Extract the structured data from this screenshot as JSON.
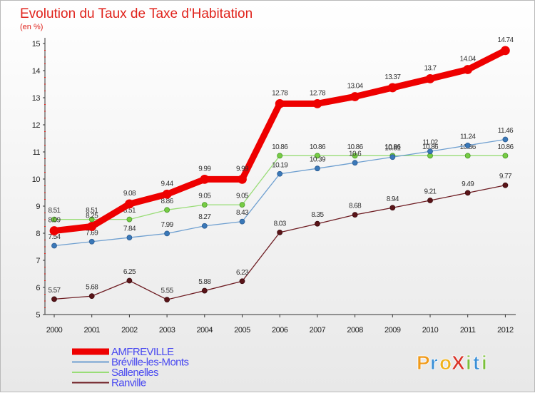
{
  "chart_data": {
    "type": "line",
    "title": "Evolution du Taux de Taxe d'Habitation",
    "subtitle": "(en %)",
    "xlabel": "",
    "ylabel": "",
    "x": [
      "2000",
      "2001",
      "2002",
      "2003",
      "2004",
      "2005",
      "2006",
      "2007",
      "2008",
      "2009",
      "2010",
      "2011",
      "2012"
    ],
    "ylim": [
      5,
      15
    ],
    "yticks": [
      5,
      6,
      7,
      8,
      9,
      10,
      11,
      12,
      13,
      14,
      15
    ],
    "grid": false,
    "legend_position": "bottom-left",
    "series": [
      {
        "name": "Ranville",
        "color": "#6e1d23",
        "values": [
          5.57,
          5.68,
          6.25,
          5.55,
          5.88,
          6.23,
          8.03,
          8.35,
          8.68,
          8.94,
          9.21,
          9.49,
          9.77
        ],
        "labels": [
          "5.57",
          "5.68",
          "6.25",
          "5.55",
          "5.88",
          "6.23",
          "8.03",
          "8.35",
          "8.68",
          "8.94",
          "9.21",
          "9.49",
          "9.77"
        ]
      },
      {
        "name": "Sallenelles",
        "color": "#99dd77",
        "values": [
          8.51,
          8.51,
          8.51,
          8.86,
          9.05,
          9.05,
          10.86,
          10.86,
          10.86,
          10.86,
          10.86,
          10.86,
          10.86
        ],
        "labels": [
          "8.51",
          "8.51",
          "8.51",
          "8.86",
          "9.05",
          "9.05",
          "10.86",
          "10.86",
          "10.86",
          "10.86",
          "10.86",
          "10.86",
          "10.86"
        ]
      },
      {
        "name": "Bréville-les-Monts",
        "color": "#6e9fd0",
        "values": [
          7.54,
          7.69,
          7.84,
          7.99,
          8.27,
          8.43,
          10.19,
          10.39,
          10.6,
          10.81,
          11.02,
          11.24,
          11.46
        ],
        "labels": [
          "7.54",
          "7.69",
          "7.84",
          "7.99",
          "8.27",
          "8.43",
          "10.19",
          "10.39",
          "10.6",
          "10.81",
          "11.02",
          "11.24",
          "11.46"
        ]
      },
      {
        "name": "AMFREVILLE",
        "color": "#ee0000",
        "values": [
          8.09,
          8.25,
          9.08,
          9.44,
          9.99,
          9.99,
          12.78,
          12.78,
          13.04,
          13.37,
          13.7,
          14.04,
          14.74
        ],
        "labels": [
          "8.09",
          "8.25",
          "9.08",
          "9.44",
          "9.99",
          "9.99",
          "12.78",
          "12.78",
          "13.04",
          "13.37",
          "13.7",
          "14.04",
          "14.74"
        ]
      }
    ],
    "legend": [
      "AMFREVILLE",
      "Bréville-les-Monts",
      "Sallenelles",
      "Ranville"
    ]
  },
  "logo": {
    "text": "ProXiti",
    "letters": [
      {
        "char": "P",
        "color": "#f09a1a"
      },
      {
        "char": "r",
        "color": "#3a8fd6"
      },
      {
        "char": "o",
        "color": "#f0b21a"
      },
      {
        "char": "X",
        "color": "#d9352a"
      },
      {
        "char": "i",
        "color": "#7bbf3a"
      },
      {
        "char": "t",
        "color": "#3a8fd6"
      },
      {
        "char": "i",
        "color": "#7bbf3a"
      }
    ]
  }
}
